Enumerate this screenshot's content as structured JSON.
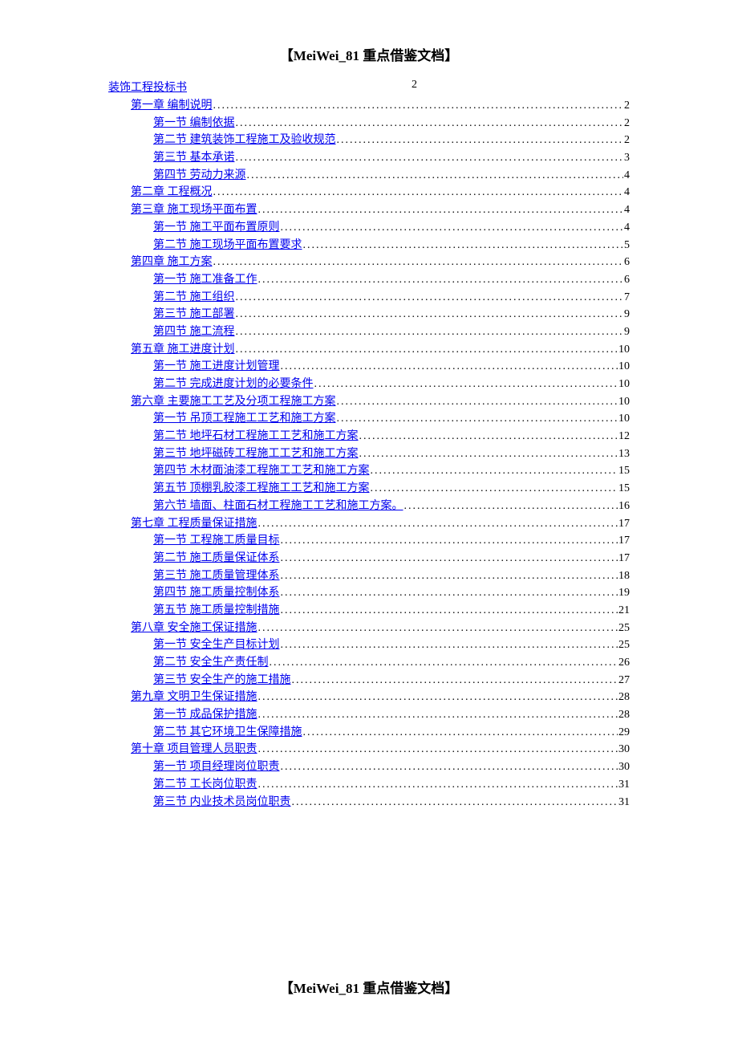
{
  "header": "【MeiWei_81 重点借鉴文档】",
  "footer": "【MeiWei_81 重点借鉴文档】",
  "link_color": "#0000ee",
  "text_color": "#000000",
  "background_color": "#ffffff",
  "font_family": "SimSun",
  "font_size": 14,
  "title_font_size": 17,
  "main_title": {
    "text": "装饰工程投标书",
    "page": "2"
  },
  "toc_entries": [
    {
      "level": 1,
      "text": "第一章  编制说明",
      "page": "2"
    },
    {
      "level": 2,
      "text": "第一节  编制依据",
      "page": "2"
    },
    {
      "level": 2,
      "text": "第二节  建筑装饰工程施工及验收规范",
      "page": "2"
    },
    {
      "level": 2,
      "text": "第三节  基本承诺",
      "page": "3"
    },
    {
      "level": 2,
      "text": "第四节  劳动力来源",
      "page": "4"
    },
    {
      "level": 1,
      "text": "第二章  工程概况",
      "page": "4"
    },
    {
      "level": 1,
      "text": "第三章  施工现场平面布置",
      "page": "4"
    },
    {
      "level": 2,
      "text": "第一节  施工平面布置原则",
      "page": "4"
    },
    {
      "level": 2,
      "text": "第二节  施工现场平面布置要求",
      "page": "5"
    },
    {
      "level": 1,
      "text": "第四章  施工方案",
      "page": "6"
    },
    {
      "level": 2,
      "text": "第一节  施工准备工作",
      "page": "6"
    },
    {
      "level": 2,
      "text": "第二节  施工组织",
      "page": "7"
    },
    {
      "level": 2,
      "text": "第三节  施工部署",
      "page": "9"
    },
    {
      "level": 2,
      "text": "第四节  施工流程",
      "page": "9"
    },
    {
      "level": 1,
      "text": "第五章  施工进度计划",
      "page": "10"
    },
    {
      "level": 2,
      "text": "第一节  施工进度计划管理",
      "page": "10"
    },
    {
      "level": 2,
      "text": "第二节  完成进度计划的必要条件",
      "page": "10"
    },
    {
      "level": 1,
      "text": "第六章  主要施工工艺及分项工程施工方案",
      "page": "10"
    },
    {
      "level": 2,
      "text": "第一节  吊顶工程施工工艺和施工方案",
      "page": "10"
    },
    {
      "level": 2,
      "text": "第二节  地坪石材工程施工工艺和施工方案",
      "page": "12"
    },
    {
      "level": 2,
      "text": "第三节  地坪磁砖工程施工工艺和施工方案",
      "page": "13"
    },
    {
      "level": 2,
      "text": "第四节  木材面油漆工程施工工艺和施工方案",
      "page": "15"
    },
    {
      "level": 2,
      "text": "第五节  顶棚乳胶漆工程施工工艺和施工方案",
      "page": "15"
    },
    {
      "level": 2,
      "text": "第六节  墙面、柱面石材工程施工工艺和施工方案。",
      "page": "16"
    },
    {
      "level": 1,
      "text": "第七章  工程质量保证措施",
      "page": "17"
    },
    {
      "level": 2,
      "text": "第一节  工程施工质量目标",
      "page": "17"
    },
    {
      "level": 2,
      "text": "第二节  施工质量保证体系",
      "page": "17"
    },
    {
      "level": 2,
      "text": "第三节  施工质量管理体系",
      "page": "18"
    },
    {
      "level": 2,
      "text": "第四节  施工质量控制体系",
      "page": "19"
    },
    {
      "level": 2,
      "text": "第五节  施工质量控制措施",
      "page": "21"
    },
    {
      "level": 1,
      "text": "第八章  安全施工保证措施",
      "page": "25"
    },
    {
      "level": 2,
      "text": "第一节  安全生产目标计划",
      "page": "25"
    },
    {
      "level": 2,
      "text": "第二节  安全生产责任制",
      "page": "26"
    },
    {
      "level": 2,
      "text": "第三节  安全生产的施工措施",
      "page": "27"
    },
    {
      "level": 1,
      "text": "第九章  文明卫生保证措施",
      "page": "28"
    },
    {
      "level": 2,
      "text": "第一节  成品保护措施",
      "page": "28"
    },
    {
      "level": 2,
      "text": "第二节  其它环境卫生保障措施",
      "page": "29"
    },
    {
      "level": 1,
      "text": "第十章  项目管理人员职责",
      "page": "30"
    },
    {
      "level": 2,
      "text": "第一节  项目经理岗位职责",
      "page": "30"
    },
    {
      "level": 2,
      "text": "第二节  工长岗位职责",
      "page": "31"
    },
    {
      "level": 2,
      "text": "第三节  内业技术员岗位职责",
      "page": "31"
    }
  ]
}
